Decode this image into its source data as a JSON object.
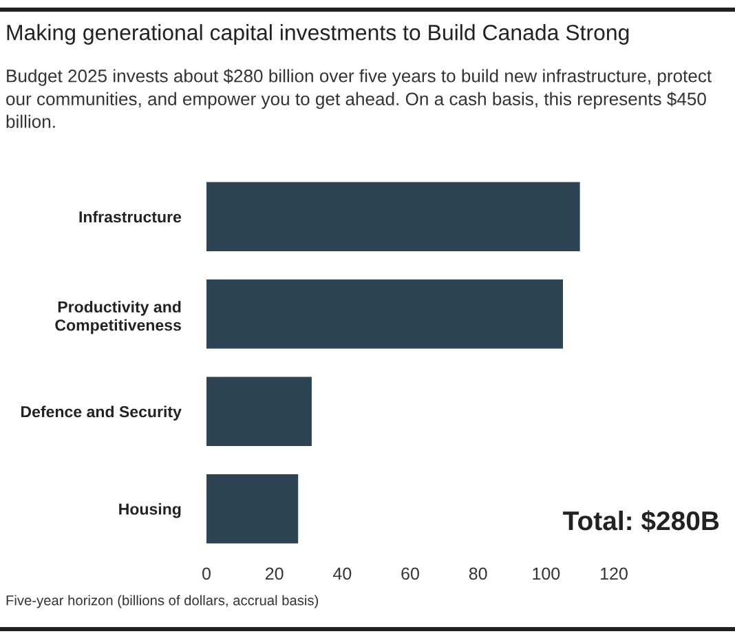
{
  "chart_data": {
    "type": "bar",
    "orientation": "horizontal",
    "title": "Making generational capital investments to Build Canada Strong",
    "subtitle": "Budget 2025 invests about $280 billion over five years to build new infrastructure, protect our communities, and empower you to get ahead. On a cash basis, this represents $450 billion.",
    "xlabel": "Five-year horizon (billions of dollars, accrual basis)",
    "categories": [
      "Infrastructure",
      "Productivity and\nCompetitiveness",
      "Defence and Security",
      "Housing"
    ],
    "values": [
      110,
      105,
      31,
      27
    ],
    "color": "#2f4452",
    "xlim": [
      0,
      120
    ],
    "xticks": [
      0,
      20,
      40,
      60,
      80,
      100,
      120
    ],
    "annotations": [
      "Total: $280B"
    ]
  }
}
